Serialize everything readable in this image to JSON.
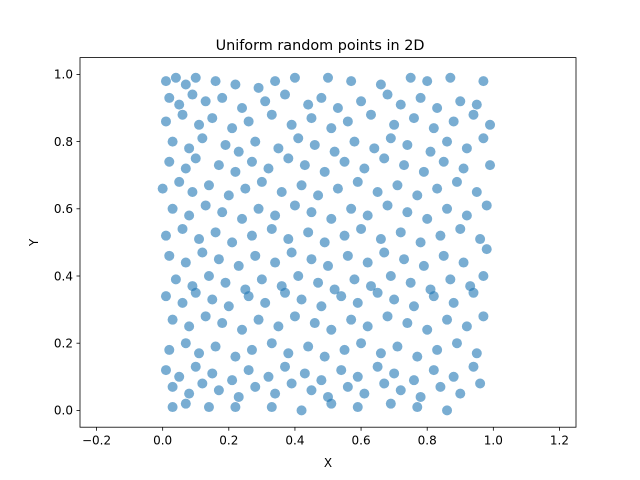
{
  "chart_data": {
    "type": "scatter",
    "title": "Uniform random points in 2D",
    "xlabel": "X",
    "ylabel": "Y",
    "xlim": [
      -0.25,
      1.25
    ],
    "ylim": [
      -0.05,
      1.05
    ],
    "xticks": [
      -0.2,
      0.0,
      0.2,
      0.4,
      0.6,
      0.8,
      1.0,
      1.2
    ],
    "xtick_labels": [
      "−0.2",
      "0.0",
      "0.2",
      "0.4",
      "0.6",
      "0.8",
      "1.0",
      "1.2"
    ],
    "yticks": [
      0.0,
      0.2,
      0.4,
      0.6,
      0.8,
      1.0
    ],
    "ytick_labels": [
      "0.0",
      "0.2",
      "0.4",
      "0.6",
      "0.8",
      "1.0"
    ],
    "grid": false,
    "marker_color": "#1f77b4",
    "marker_alpha": 0.6,
    "series": [
      {
        "points": [
          [
            0.01,
            0.98
          ],
          [
            0.04,
            0.99
          ],
          [
            0.07,
            0.97
          ],
          [
            0.1,
            0.99
          ],
          [
            0.16,
            0.98
          ],
          [
            0.22,
            0.97
          ],
          [
            0.29,
            0.96
          ],
          [
            0.34,
            0.98
          ],
          [
            0.4,
            0.99
          ],
          [
            0.5,
            0.99
          ],
          [
            0.57,
            0.98
          ],
          [
            0.66,
            0.97
          ],
          [
            0.75,
            0.99
          ],
          [
            0.8,
            0.98
          ],
          [
            0.87,
            0.99
          ],
          [
            0.97,
            0.98
          ],
          [
            0.02,
            0.93
          ],
          [
            0.05,
            0.91
          ],
          [
            0.09,
            0.94
          ],
          [
            0.13,
            0.92
          ],
          [
            0.18,
            0.93
          ],
          [
            0.24,
            0.9
          ],
          [
            0.31,
            0.92
          ],
          [
            0.37,
            0.94
          ],
          [
            0.44,
            0.91
          ],
          [
            0.48,
            0.93
          ],
          [
            0.53,
            0.9
          ],
          [
            0.6,
            0.92
          ],
          [
            0.68,
            0.94
          ],
          [
            0.72,
            0.91
          ],
          [
            0.78,
            0.93
          ],
          [
            0.83,
            0.9
          ],
          [
            0.9,
            0.92
          ],
          [
            0.95,
            0.91
          ],
          [
            0.01,
            0.86
          ],
          [
            0.06,
            0.88
          ],
          [
            0.11,
            0.85
          ],
          [
            0.15,
            0.87
          ],
          [
            0.21,
            0.84
          ],
          [
            0.26,
            0.86
          ],
          [
            0.33,
            0.88
          ],
          [
            0.39,
            0.85
          ],
          [
            0.45,
            0.87
          ],
          [
            0.51,
            0.84
          ],
          [
            0.56,
            0.86
          ],
          [
            0.63,
            0.88
          ],
          [
            0.7,
            0.85
          ],
          [
            0.76,
            0.87
          ],
          [
            0.82,
            0.84
          ],
          [
            0.88,
            0.86
          ],
          [
            0.94,
            0.88
          ],
          [
            0.99,
            0.85
          ],
          [
            0.03,
            0.8
          ],
          [
            0.08,
            0.78
          ],
          [
            0.12,
            0.81
          ],
          [
            0.19,
            0.79
          ],
          [
            0.23,
            0.77
          ],
          [
            0.28,
            0.8
          ],
          [
            0.35,
            0.78
          ],
          [
            0.41,
            0.81
          ],
          [
            0.46,
            0.79
          ],
          [
            0.52,
            0.77
          ],
          [
            0.58,
            0.8
          ],
          [
            0.64,
            0.78
          ],
          [
            0.69,
            0.81
          ],
          [
            0.74,
            0.79
          ],
          [
            0.81,
            0.77
          ],
          [
            0.86,
            0.8
          ],
          [
            0.92,
            0.78
          ],
          [
            0.97,
            0.81
          ],
          [
            0.02,
            0.74
          ],
          [
            0.07,
            0.72
          ],
          [
            0.1,
            0.75
          ],
          [
            0.17,
            0.73
          ],
          [
            0.22,
            0.71
          ],
          [
            0.27,
            0.74
          ],
          [
            0.32,
            0.72
          ],
          [
            0.38,
            0.75
          ],
          [
            0.43,
            0.73
          ],
          [
            0.49,
            0.71
          ],
          [
            0.55,
            0.74
          ],
          [
            0.61,
            0.72
          ],
          [
            0.67,
            0.75
          ],
          [
            0.73,
            0.73
          ],
          [
            0.79,
            0.71
          ],
          [
            0.85,
            0.74
          ],
          [
            0.91,
            0.72
          ],
          [
            0.99,
            0.73
          ],
          [
            0.0,
            0.66
          ],
          [
            0.05,
            0.68
          ],
          [
            0.09,
            0.65
          ],
          [
            0.14,
            0.67
          ],
          [
            0.2,
            0.64
          ],
          [
            0.25,
            0.66
          ],
          [
            0.3,
            0.68
          ],
          [
            0.36,
            0.65
          ],
          [
            0.42,
            0.67
          ],
          [
            0.47,
            0.64
          ],
          [
            0.53,
            0.66
          ],
          [
            0.59,
            0.68
          ],
          [
            0.65,
            0.65
          ],
          [
            0.71,
            0.67
          ],
          [
            0.77,
            0.64
          ],
          [
            0.83,
            0.66
          ],
          [
            0.89,
            0.68
          ],
          [
            0.95,
            0.65
          ],
          [
            0.03,
            0.6
          ],
          [
            0.08,
            0.58
          ],
          [
            0.13,
            0.61
          ],
          [
            0.18,
            0.59
          ],
          [
            0.24,
            0.57
          ],
          [
            0.29,
            0.6
          ],
          [
            0.34,
            0.58
          ],
          [
            0.4,
            0.61
          ],
          [
            0.45,
            0.59
          ],
          [
            0.51,
            0.57
          ],
          [
            0.57,
            0.6
          ],
          [
            0.62,
            0.58
          ],
          [
            0.68,
            0.61
          ],
          [
            0.74,
            0.59
          ],
          [
            0.8,
            0.57
          ],
          [
            0.86,
            0.6
          ],
          [
            0.92,
            0.58
          ],
          [
            0.98,
            0.61
          ],
          [
            0.01,
            0.52
          ],
          [
            0.06,
            0.54
          ],
          [
            0.11,
            0.51
          ],
          [
            0.16,
            0.53
          ],
          [
            0.21,
            0.5
          ],
          [
            0.27,
            0.52
          ],
          [
            0.33,
            0.54
          ],
          [
            0.38,
            0.51
          ],
          [
            0.44,
            0.53
          ],
          [
            0.49,
            0.5
          ],
          [
            0.55,
            0.52
          ],
          [
            0.6,
            0.54
          ],
          [
            0.66,
            0.51
          ],
          [
            0.72,
            0.53
          ],
          [
            0.78,
            0.5
          ],
          [
            0.84,
            0.52
          ],
          [
            0.9,
            0.54
          ],
          [
            0.96,
            0.51
          ],
          [
            0.02,
            0.46
          ],
          [
            0.07,
            0.44
          ],
          [
            0.12,
            0.47
          ],
          [
            0.17,
            0.45
          ],
          [
            0.23,
            0.43
          ],
          [
            0.28,
            0.46
          ],
          [
            0.34,
            0.44
          ],
          [
            0.39,
            0.47
          ],
          [
            0.45,
            0.45
          ],
          [
            0.5,
            0.43
          ],
          [
            0.56,
            0.46
          ],
          [
            0.62,
            0.44
          ],
          [
            0.67,
            0.47
          ],
          [
            0.73,
            0.45
          ],
          [
            0.79,
            0.43
          ],
          [
            0.85,
            0.46
          ],
          [
            0.91,
            0.44
          ],
          [
            0.98,
            0.48
          ],
          [
            0.04,
            0.39
          ],
          [
            0.09,
            0.37
          ],
          [
            0.14,
            0.4
          ],
          [
            0.19,
            0.38
          ],
          [
            0.25,
            0.36
          ],
          [
            0.3,
            0.39
          ],
          [
            0.36,
            0.37
          ],
          [
            0.41,
            0.4
          ],
          [
            0.47,
            0.38
          ],
          [
            0.52,
            0.36
          ],
          [
            0.58,
            0.39
          ],
          [
            0.63,
            0.37
          ],
          [
            0.69,
            0.4
          ],
          [
            0.75,
            0.38
          ],
          [
            0.81,
            0.36
          ],
          [
            0.87,
            0.39
          ],
          [
            0.93,
            0.37
          ],
          [
            0.97,
            0.4
          ],
          [
            0.01,
            0.34
          ],
          [
            0.06,
            0.32
          ],
          [
            0.1,
            0.35
          ],
          [
            0.15,
            0.33
          ],
          [
            0.2,
            0.31
          ],
          [
            0.26,
            0.34
          ],
          [
            0.31,
            0.32
          ],
          [
            0.37,
            0.35
          ],
          [
            0.42,
            0.33
          ],
          [
            0.48,
            0.31
          ],
          [
            0.54,
            0.34
          ],
          [
            0.59,
            0.32
          ],
          [
            0.65,
            0.35
          ],
          [
            0.7,
            0.33
          ],
          [
            0.76,
            0.31
          ],
          [
            0.82,
            0.34
          ],
          [
            0.88,
            0.32
          ],
          [
            0.94,
            0.35
          ],
          [
            0.03,
            0.27
          ],
          [
            0.08,
            0.25
          ],
          [
            0.13,
            0.28
          ],
          [
            0.18,
            0.26
          ],
          [
            0.24,
            0.24
          ],
          [
            0.29,
            0.27
          ],
          [
            0.35,
            0.25
          ],
          [
            0.4,
            0.28
          ],
          [
            0.46,
            0.26
          ],
          [
            0.51,
            0.24
          ],
          [
            0.57,
            0.27
          ],
          [
            0.62,
            0.25
          ],
          [
            0.68,
            0.28
          ],
          [
            0.74,
            0.26
          ],
          [
            0.8,
            0.24
          ],
          [
            0.86,
            0.27
          ],
          [
            0.92,
            0.25
          ],
          [
            0.97,
            0.28
          ],
          [
            0.02,
            0.18
          ],
          [
            0.07,
            0.2
          ],
          [
            0.11,
            0.17
          ],
          [
            0.16,
            0.19
          ],
          [
            0.22,
            0.16
          ],
          [
            0.27,
            0.18
          ],
          [
            0.33,
            0.2
          ],
          [
            0.38,
            0.17
          ],
          [
            0.44,
            0.19
          ],
          [
            0.49,
            0.16
          ],
          [
            0.55,
            0.18
          ],
          [
            0.6,
            0.2
          ],
          [
            0.66,
            0.17
          ],
          [
            0.71,
            0.19
          ],
          [
            0.77,
            0.16
          ],
          [
            0.83,
            0.18
          ],
          [
            0.89,
            0.2
          ],
          [
            0.95,
            0.17
          ],
          [
            0.01,
            0.12
          ],
          [
            0.05,
            0.1
          ],
          [
            0.1,
            0.13
          ],
          [
            0.15,
            0.11
          ],
          [
            0.21,
            0.09
          ],
          [
            0.26,
            0.12
          ],
          [
            0.32,
            0.1
          ],
          [
            0.37,
            0.13
          ],
          [
            0.43,
            0.11
          ],
          [
            0.48,
            0.09
          ],
          [
            0.54,
            0.12
          ],
          [
            0.59,
            0.1
          ],
          [
            0.65,
            0.13
          ],
          [
            0.7,
            0.11
          ],
          [
            0.76,
            0.09
          ],
          [
            0.82,
            0.12
          ],
          [
            0.88,
            0.1
          ],
          [
            0.94,
            0.13
          ],
          [
            0.03,
            0.07
          ],
          [
            0.08,
            0.05
          ],
          [
            0.12,
            0.08
          ],
          [
            0.17,
            0.06
          ],
          [
            0.23,
            0.04
          ],
          [
            0.28,
            0.07
          ],
          [
            0.34,
            0.05
          ],
          [
            0.39,
            0.08
          ],
          [
            0.45,
            0.06
          ],
          [
            0.5,
            0.04
          ],
          [
            0.56,
            0.07
          ],
          [
            0.61,
            0.05
          ],
          [
            0.67,
            0.08
          ],
          [
            0.72,
            0.06
          ],
          [
            0.78,
            0.04
          ],
          [
            0.84,
            0.07
          ],
          [
            0.9,
            0.05
          ],
          [
            0.96,
            0.08
          ],
          [
            0.03,
            0.01
          ],
          [
            0.07,
            0.02
          ],
          [
            0.14,
            0.01
          ],
          [
            0.22,
            0.01
          ],
          [
            0.33,
            0.01
          ],
          [
            0.42,
            0.0
          ],
          [
            0.51,
            0.02
          ],
          [
            0.59,
            0.01
          ],
          [
            0.69,
            0.02
          ],
          [
            0.77,
            0.01
          ],
          [
            0.86,
            0.0
          ]
        ]
      }
    ]
  }
}
